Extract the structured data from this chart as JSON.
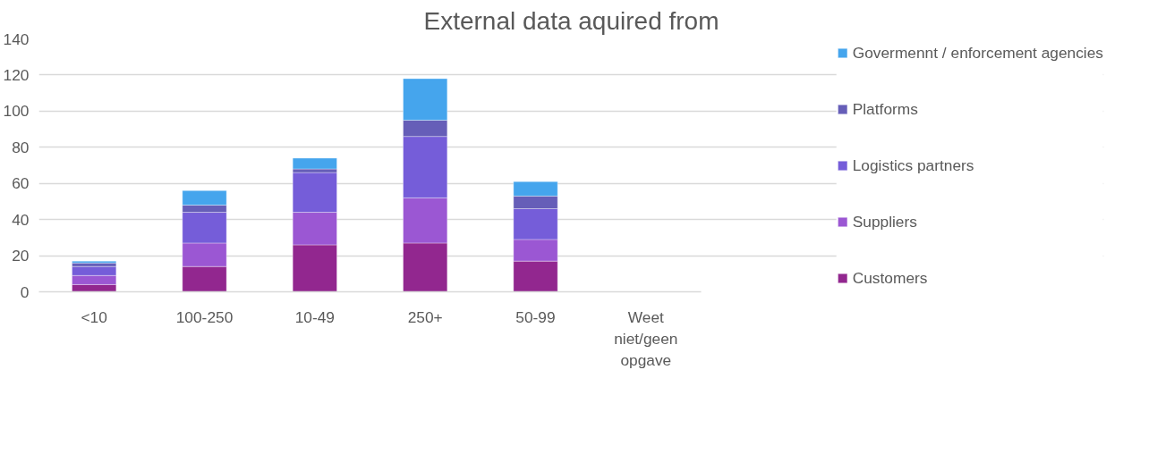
{
  "chart_data": {
    "type": "bar",
    "stacked": true,
    "title": "External data aquired from",
    "categories": [
      "<10",
      "100-250",
      "10-49",
      "250+",
      "50-99",
      "Weet niet/geen opgave"
    ],
    "series": [
      {
        "name": "Customers",
        "color": "#92278f",
        "values": [
          4,
          14,
          26,
          27,
          17,
          0
        ]
      },
      {
        "name": "Suppliers",
        "color": "#9b57d3",
        "values": [
          5,
          13,
          18,
          25,
          12,
          0
        ]
      },
      {
        "name": "Logistics partners",
        "color": "#755dd9",
        "values": [
          5,
          17,
          22,
          34,
          17,
          0
        ]
      },
      {
        "name": "Platforms",
        "color": "#665eb8",
        "values": [
          2,
          4,
          2,
          9,
          7,
          0
        ]
      },
      {
        "name": "Govermennt / enforcement agencies",
        "color": "#45a5ed",
        "values": [
          1,
          8,
          6,
          23,
          8,
          0
        ]
      }
    ],
    "ylim": [
      0,
      140
    ],
    "yticks": [
      0,
      20,
      40,
      60,
      80,
      100,
      120,
      140
    ],
    "grid": "y",
    "legend": "right"
  }
}
